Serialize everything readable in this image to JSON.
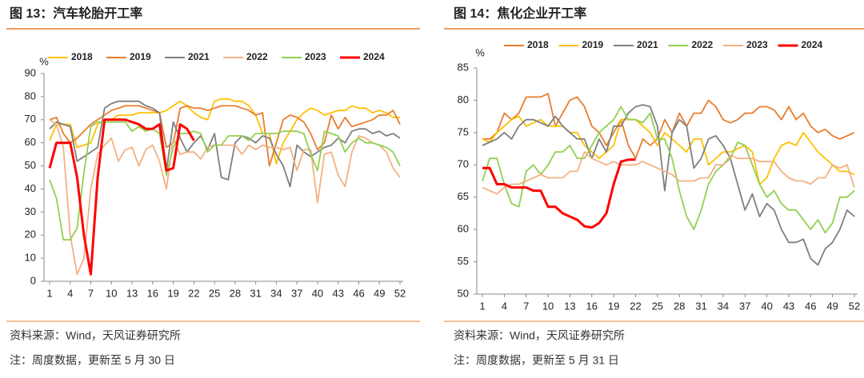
{
  "chart_data": [
    {
      "type": "line",
      "title": "图 13：汽车轮胎开工率",
      "ylabel": "%",
      "source": "资料来源：Wind，天风证券研究所",
      "note": "注：周度数据，更新至 5 月 30 日",
      "x": [
        1,
        2,
        3,
        4,
        5,
        6,
        7,
        8,
        9,
        10,
        11,
        12,
        13,
        14,
        15,
        16,
        17,
        18,
        19,
        20,
        21,
        22,
        23,
        24,
        25,
        26,
        27,
        28,
        29,
        30,
        31,
        32,
        33,
        34,
        35,
        36,
        37,
        38,
        39,
        40,
        41,
        42,
        43,
        44,
        45,
        46,
        47,
        48,
        49,
        50,
        51,
        52
      ],
      "xlim": [
        1,
        52
      ],
      "xticks": [
        1,
        4,
        7,
        10,
        13,
        16,
        19,
        22,
        25,
        28,
        31,
        34,
        37,
        40,
        43,
        46,
        49,
        52
      ],
      "ylim": [
        0,
        90
      ],
      "yticks": [
        0,
        10,
        20,
        30,
        40,
        50,
        60,
        70,
        80,
        90
      ],
      "series": [
        {
          "name": "2018",
          "color": "#FFC000",
          "values": [
            61,
            68,
            68,
            68,
            58,
            59,
            60,
            68,
            70,
            70,
            72,
            72,
            72,
            73,
            73,
            73,
            73,
            74,
            76,
            78,
            76,
            73,
            71,
            70,
            78,
            79,
            79,
            78,
            78,
            76,
            72,
            64,
            64,
            51,
            60,
            65,
            70,
            73,
            75,
            74,
            72,
            73,
            74,
            74,
            76,
            75,
            75,
            73,
            74,
            73,
            71,
            71
          ]
        },
        {
          "name": "2019",
          "color": "#E87D2F",
          "values": [
            70,
            71,
            64,
            60,
            62,
            65,
            68,
            70,
            72,
            74,
            75,
            76,
            76,
            76,
            75,
            74,
            73,
            58,
            60,
            75,
            76,
            75,
            75,
            74,
            75,
            76,
            76,
            76,
            75,
            74,
            72,
            73,
            50,
            60,
            70,
            72,
            71,
            69,
            64,
            57,
            60,
            72,
            66,
            71,
            67,
            68,
            69,
            70,
            72,
            72,
            74,
            68
          ]
        },
        {
          "name": "2021",
          "color": "#7F7F7F",
          "values": [
            66,
            69,
            68,
            67,
            52,
            54,
            56,
            58,
            75,
            77,
            78,
            78,
            78,
            78,
            76,
            75,
            73,
            48,
            69,
            62,
            56,
            60,
            63,
            57,
            64,
            45,
            44,
            60,
            63,
            62,
            60,
            63,
            62,
            55,
            50,
            41,
            59,
            56,
            54,
            56,
            58,
            59,
            62,
            60,
            65,
            66,
            66,
            64,
            65,
            63,
            64,
            62
          ]
        },
        {
          "name": "2022",
          "color": "#F4B183",
          "values": [
            70,
            68,
            58,
            20,
            3,
            10,
            40,
            55,
            59,
            62,
            52,
            57,
            58,
            50,
            57,
            59,
            52,
            40,
            62,
            55,
            56,
            56,
            53,
            58,
            59,
            59,
            59,
            59,
            55,
            59,
            57,
            59,
            58,
            58,
            57,
            58,
            48,
            57,
            57,
            34,
            55,
            56,
            46,
            41,
            56,
            63,
            62,
            60,
            59,
            56,
            49,
            45
          ]
        },
        {
          "name": "2023",
          "color": "#92D050",
          "values": [
            44,
            36,
            18,
            18,
            23,
            47,
            67,
            69,
            69,
            69,
            69,
            69,
            65,
            67,
            65,
            66,
            64,
            46,
            58,
            64,
            64,
            65,
            64,
            56,
            59,
            59,
            63,
            63,
            63,
            61,
            64,
            64,
            64,
            64,
            65,
            65,
            65,
            64,
            55,
            48,
            65,
            64,
            63,
            56,
            60,
            62,
            60,
            60,
            59,
            58,
            56,
            50
          ]
        },
        {
          "name": "2024",
          "color": "#FF0000",
          "values": [
            49,
            60,
            60,
            60,
            45,
            20,
            3,
            45,
            70,
            70,
            70,
            70,
            69,
            68,
            66,
            66,
            68,
            48,
            49,
            68,
            66,
            61,
            null,
            null,
            null,
            null,
            null,
            null,
            null,
            null,
            null,
            null,
            null,
            null,
            null,
            null,
            null,
            null,
            null,
            null,
            null,
            null,
            null,
            null,
            null,
            null,
            null,
            null,
            null,
            null,
            null,
            null
          ]
        }
      ]
    },
    {
      "type": "line",
      "title": "图 14：焦化企业开工率",
      "ylabel": "%",
      "source": "资料来源：Wind，天风证券研究所",
      "note": "注：周度数据，更新至 5 月 31 日",
      "x": [
        1,
        2,
        3,
        4,
        5,
        6,
        7,
        8,
        9,
        10,
        11,
        12,
        13,
        14,
        15,
        16,
        17,
        18,
        19,
        20,
        21,
        22,
        23,
        24,
        25,
        26,
        27,
        28,
        29,
        30,
        31,
        32,
        33,
        34,
        35,
        36,
        37,
        38,
        39,
        40,
        41,
        42,
        43,
        44,
        45,
        46,
        47,
        48,
        49,
        50,
        51,
        52
      ],
      "xlim": [
        1,
        52
      ],
      "xticks": [
        1,
        4,
        7,
        10,
        13,
        16,
        19,
        22,
        25,
        28,
        31,
        34,
        37,
        40,
        43,
        46,
        49,
        52
      ],
      "ylim": [
        50,
        85
      ],
      "yticks": [
        50,
        55,
        60,
        65,
        70,
        75,
        80,
        85
      ],
      "series": [
        {
          "name": "2018",
          "color": "#E87D2F",
          "values": [
            74,
            74,
            75,
            78,
            77,
            78,
            80.5,
            80.5,
            80.5,
            81,
            76,
            78,
            80,
            80.5,
            79,
            76,
            75,
            73,
            75,
            77,
            73,
            71,
            74,
            73,
            74,
            77,
            75,
            78,
            76,
            78,
            78,
            80,
            79,
            77,
            76.5,
            77,
            78,
            78,
            79,
            79,
            78.5,
            77,
            79,
            77,
            78,
            76,
            75,
            75.5,
            74.5,
            74,
            74.5,
            75
          ]
        },
        {
          "name": "2019",
          "color": "#FFC000",
          "values": [
            74,
            73.5,
            75,
            76,
            77,
            77.5,
            76,
            76.5,
            77,
            76,
            76,
            76,
            75,
            75,
            73,
            72,
            71,
            72,
            73,
            77,
            77,
            77,
            76,
            75,
            73,
            75,
            74,
            73,
            72,
            74,
            74,
            70,
            71,
            72,
            72,
            72.5,
            73,
            72,
            67,
            68,
            71,
            73,
            73.5,
            73,
            75,
            73.5,
            72,
            71,
            70,
            69,
            69,
            68.5
          ]
        },
        {
          "name": "2021",
          "color": "#7F7F7F",
          "values": [
            73,
            73.5,
            74,
            75,
            74,
            76,
            77,
            77,
            76.5,
            76,
            77.5,
            76,
            75,
            74,
            74,
            71,
            74,
            72,
            76,
            76,
            78,
            79,
            79.3,
            79,
            76,
            66,
            75,
            77,
            76,
            69.5,
            71,
            74,
            74.5,
            73,
            71,
            67,
            63,
            65.5,
            62,
            64,
            63,
            60,
            58,
            58,
            58.5,
            55.5,
            54.5,
            57,
            58,
            60,
            63,
            62
          ]
        },
        {
          "name": "2022",
          "color": "#92D050",
          "values": [
            67.5,
            71,
            71,
            67,
            64,
            63.5,
            69,
            70,
            68.5,
            70,
            72,
            72,
            73,
            71,
            71,
            73,
            75,
            76,
            77,
            79,
            77,
            77,
            76.5,
            78,
            74,
            74,
            71,
            66,
            62,
            60,
            63,
            67,
            69,
            70,
            71,
            73.5,
            73,
            70,
            67,
            65,
            66,
            64,
            63,
            63,
            61.5,
            60,
            61.5,
            59.5,
            61,
            65,
            65,
            66
          ]
        },
        {
          "name": "2023",
          "color": "#F4B183",
          "values": [
            66.5,
            66,
            65.5,
            66.5,
            67,
            67,
            67.5,
            68,
            68.5,
            68,
            68,
            68,
            69,
            69,
            72,
            71,
            70.5,
            70,
            70.5,
            70,
            70,
            70,
            70.5,
            70,
            69.5,
            69,
            68.5,
            67.5,
            67.5,
            67.5,
            68,
            68,
            70,
            70,
            71.5,
            71,
            71,
            71,
            70.5,
            70.5,
            70.5,
            69,
            68,
            67.5,
            67.5,
            67,
            68,
            68,
            70,
            69.5,
            70,
            66.5
          ]
        },
        {
          "name": "2024",
          "color": "#FF0000",
          "values": [
            69.5,
            69.5,
            67,
            67,
            66.5,
            66.5,
            66.5,
            66,
            66,
            63.5,
            63.5,
            62.5,
            62,
            61.5,
            60.5,
            60.3,
            61,
            62.5,
            67,
            70.5,
            70.8,
            70.8,
            null,
            null,
            null,
            null,
            null,
            null,
            null,
            null,
            null,
            null,
            null,
            null,
            null,
            null,
            null,
            null,
            null,
            null,
            null,
            null,
            null,
            null,
            null,
            null,
            null,
            null,
            null,
            null,
            null,
            null
          ]
        }
      ]
    }
  ]
}
